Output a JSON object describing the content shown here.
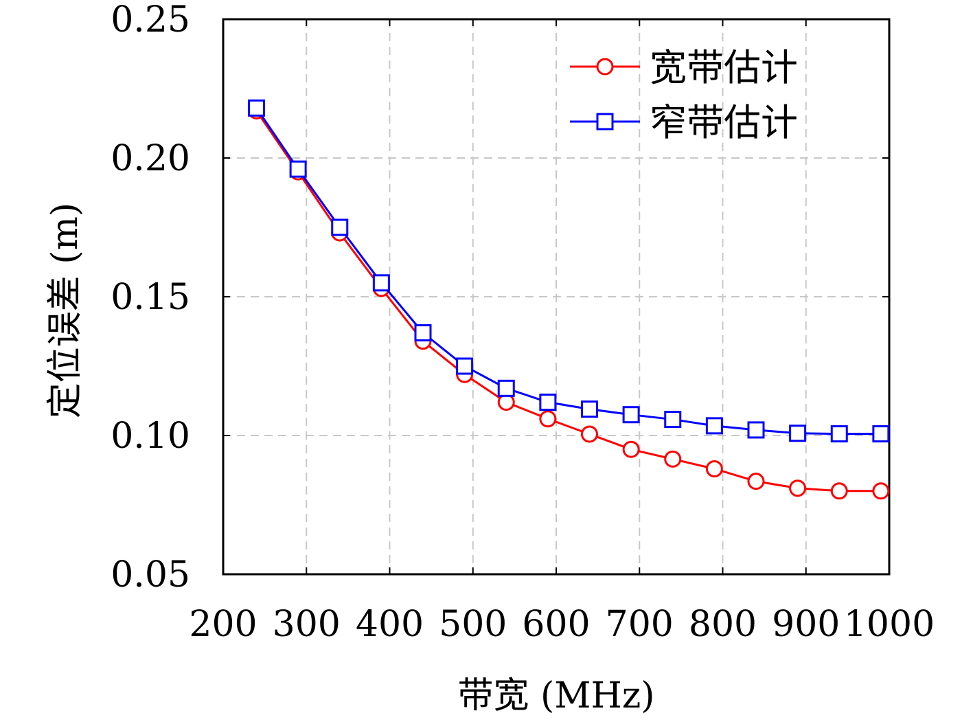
{
  "chart_data": {
    "type": "line",
    "xlabel": "带宽 (MHz)",
    "ylabel": "定位误差 (m)",
    "xlim": [
      200,
      1000
    ],
    "ylim": [
      0.05,
      0.25
    ],
    "xticks": [
      "200",
      "300",
      "400",
      "500",
      "600",
      "700",
      "800",
      "900",
      "1000"
    ],
    "yticks": [
      "0.05",
      "0.10",
      "0.15",
      "0.20",
      "0.25"
    ],
    "grid": true,
    "legend_position": "top-right",
    "x": [
      240,
      290,
      340,
      390,
      440,
      490,
      540,
      590,
      640,
      690,
      740,
      790,
      840,
      890,
      940,
      990
    ],
    "series": [
      {
        "name": "宽带估计",
        "color": "#ff0000",
        "marker": "circle",
        "values": [
          0.217,
          0.195,
          0.173,
          0.153,
          0.134,
          0.122,
          0.112,
          0.106,
          0.1005,
          0.095,
          0.0915,
          0.088,
          0.0835,
          0.081,
          0.08,
          0.08
        ]
      },
      {
        "name": "窄带估计",
        "color": "#0000ff",
        "marker": "square",
        "values": [
          0.218,
          0.196,
          0.175,
          0.155,
          0.137,
          0.125,
          0.117,
          0.112,
          0.1095,
          0.1075,
          0.1058,
          0.1035,
          0.102,
          0.1008,
          0.1006,
          0.1006
        ]
      }
    ]
  }
}
